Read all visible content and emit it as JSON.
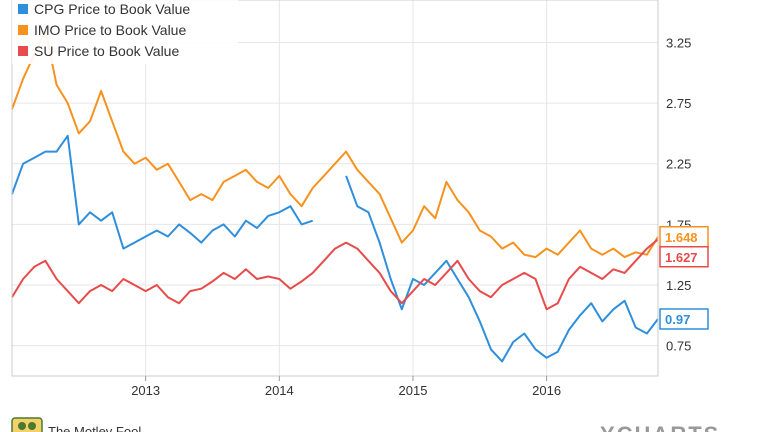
{
  "chart_data": {
    "type": "line",
    "title": "",
    "xlabel": "",
    "ylabel": "",
    "x_ticks": [
      "2013",
      "2014",
      "2015",
      "2016"
    ],
    "y_ticks": [
      "0.75",
      "1.25",
      "1.75",
      "2.25",
      "2.75",
      "3.25"
    ],
    "ylim": [
      0.5,
      3.6
    ],
    "xlim": [
      "2012-01",
      "2016-11"
    ],
    "grid": true,
    "legend_position": "top-left",
    "series": [
      {
        "name": "CPG Price to Book Value",
        "color": "#2f8fdc",
        "end_label": "0.97",
        "segments": [
          [
            [
              "2012-01",
              2.0
            ],
            [
              "2012-02",
              2.25
            ],
            [
              "2012-03",
              2.3
            ],
            [
              "2012-04",
              2.35
            ],
            [
              "2012-05",
              2.35
            ],
            [
              "2012-06",
              2.48
            ],
            [
              "2012-07",
              1.75
            ],
            [
              "2012-08",
              1.85
            ],
            [
              "2012-09",
              1.78
            ],
            [
              "2012-10",
              1.85
            ],
            [
              "2012-11",
              1.55
            ],
            [
              "2012-12",
              1.6
            ],
            [
              "2013-01",
              1.65
            ],
            [
              "2013-02",
              1.7
            ],
            [
              "2013-03",
              1.65
            ],
            [
              "2013-04",
              1.75
            ],
            [
              "2013-05",
              1.68
            ],
            [
              "2013-06",
              1.6
            ],
            [
              "2013-07",
              1.7
            ],
            [
              "2013-08",
              1.75
            ],
            [
              "2013-09",
              1.65
            ],
            [
              "2013-10",
              1.78
            ],
            [
              "2013-11",
              1.72
            ],
            [
              "2013-12",
              1.82
            ],
            [
              "2014-01",
              1.85
            ],
            [
              "2014-02",
              1.9
            ],
            [
              "2014-03",
              1.75
            ],
            [
              "2014-04",
              1.78
            ]
          ],
          [
            [
              "2014-07",
              2.15
            ],
            [
              "2014-08",
              1.9
            ],
            [
              "2014-09",
              1.85
            ],
            [
              "2014-10",
              1.6
            ],
            [
              "2014-11",
              1.3
            ],
            [
              "2014-12",
              1.05
            ],
            [
              "2015-01",
              1.3
            ],
            [
              "2015-02",
              1.25
            ],
            [
              "2015-03",
              1.35
            ],
            [
              "2015-04",
              1.45
            ],
            [
              "2015-05",
              1.3
            ],
            [
              "2015-06",
              1.15
            ],
            [
              "2015-07",
              0.95
            ],
            [
              "2015-08",
              0.72
            ],
            [
              "2015-09",
              0.62
            ],
            [
              "2015-10",
              0.78
            ],
            [
              "2015-11",
              0.85
            ],
            [
              "2015-12",
              0.72
            ],
            [
              "2016-01",
              0.65
            ],
            [
              "2016-02",
              0.7
            ],
            [
              "2016-03",
              0.88
            ],
            [
              "2016-04",
              1.0
            ],
            [
              "2016-05",
              1.1
            ],
            [
              "2016-06",
              0.95
            ],
            [
              "2016-07",
              1.05
            ],
            [
              "2016-08",
              1.12
            ],
            [
              "2016-09",
              0.9
            ],
            [
              "2016-10",
              0.85
            ],
            [
              "2016-11",
              0.97
            ]
          ]
        ]
      },
      {
        "name": "IMO Price to Book Value",
        "color": "#f7921e",
        "end_label": "1.648",
        "segments": [
          [
            [
              "2012-01",
              2.7
            ],
            [
              "2012-02",
              2.95
            ],
            [
              "2012-03",
              3.15
            ],
            [
              "2012-04",
              3.35
            ],
            [
              "2012-05",
              2.9
            ],
            [
              "2012-06",
              2.75
            ],
            [
              "2012-07",
              2.5
            ],
            [
              "2012-08",
              2.6
            ],
            [
              "2012-09",
              2.85
            ],
            [
              "2012-10",
              2.6
            ],
            [
              "2012-11",
              2.35
            ],
            [
              "2012-12",
              2.25
            ],
            [
              "2013-01",
              2.3
            ],
            [
              "2013-02",
              2.2
            ],
            [
              "2013-03",
              2.25
            ],
            [
              "2013-04",
              2.1
            ],
            [
              "2013-05",
              1.95
            ],
            [
              "2013-06",
              2.0
            ],
            [
              "2013-07",
              1.95
            ],
            [
              "2013-08",
              2.1
            ],
            [
              "2013-09",
              2.15
            ],
            [
              "2013-10",
              2.2
            ],
            [
              "2013-11",
              2.1
            ],
            [
              "2013-12",
              2.05
            ],
            [
              "2014-01",
              2.15
            ],
            [
              "2014-02",
              2.0
            ],
            [
              "2014-03",
              1.9
            ],
            [
              "2014-04",
              2.05
            ],
            [
              "2014-05",
              2.15
            ],
            [
              "2014-06",
              2.25
            ],
            [
              "2014-07",
              2.35
            ],
            [
              "2014-08",
              2.2
            ],
            [
              "2014-09",
              2.1
            ],
            [
              "2014-10",
              2.0
            ],
            [
              "2014-11",
              1.8
            ],
            [
              "2014-12",
              1.6
            ],
            [
              "2015-01",
              1.7
            ],
            [
              "2015-02",
              1.9
            ],
            [
              "2015-03",
              1.8
            ],
            [
              "2015-04",
              2.1
            ],
            [
              "2015-05",
              1.95
            ],
            [
              "2015-06",
              1.85
            ],
            [
              "2015-07",
              1.7
            ],
            [
              "2015-08",
              1.65
            ],
            [
              "2015-09",
              1.55
            ],
            [
              "2015-10",
              1.6
            ],
            [
              "2015-11",
              1.5
            ],
            [
              "2015-12",
              1.48
            ],
            [
              "2016-01",
              1.55
            ],
            [
              "2016-02",
              1.5
            ],
            [
              "2016-03",
              1.6
            ],
            [
              "2016-04",
              1.7
            ],
            [
              "2016-05",
              1.55
            ],
            [
              "2016-06",
              1.5
            ],
            [
              "2016-07",
              1.55
            ],
            [
              "2016-08",
              1.48
            ],
            [
              "2016-09",
              1.52
            ],
            [
              "2016-10",
              1.5
            ],
            [
              "2016-11",
              1.648
            ]
          ]
        ]
      },
      {
        "name": "SU Price to Book Value",
        "color": "#e84b4b",
        "end_label": "1.627",
        "segments": [
          [
            [
              "2012-01",
              1.15
            ],
            [
              "2012-02",
              1.3
            ],
            [
              "2012-03",
              1.4
            ],
            [
              "2012-04",
              1.45
            ],
            [
              "2012-05",
              1.3
            ],
            [
              "2012-06",
              1.2
            ],
            [
              "2012-07",
              1.1
            ],
            [
              "2012-08",
              1.2
            ],
            [
              "2012-09",
              1.25
            ],
            [
              "2012-10",
              1.2
            ],
            [
              "2012-11",
              1.3
            ],
            [
              "2012-12",
              1.25
            ],
            [
              "2013-01",
              1.2
            ],
            [
              "2013-02",
              1.25
            ],
            [
              "2013-03",
              1.15
            ],
            [
              "2013-04",
              1.1
            ],
            [
              "2013-05",
              1.2
            ],
            [
              "2013-06",
              1.22
            ],
            [
              "2013-07",
              1.28
            ],
            [
              "2013-08",
              1.35
            ],
            [
              "2013-09",
              1.3
            ],
            [
              "2013-10",
              1.38
            ],
            [
              "2013-11",
              1.3
            ],
            [
              "2013-12",
              1.32
            ],
            [
              "2014-01",
              1.3
            ],
            [
              "2014-02",
              1.22
            ],
            [
              "2014-03",
              1.28
            ],
            [
              "2014-04",
              1.35
            ],
            [
              "2014-05",
              1.45
            ],
            [
              "2014-06",
              1.55
            ],
            [
              "2014-07",
              1.6
            ],
            [
              "2014-08",
              1.55
            ],
            [
              "2014-09",
              1.45
            ],
            [
              "2014-10",
              1.35
            ],
            [
              "2014-11",
              1.2
            ],
            [
              "2014-12",
              1.1
            ],
            [
              "2015-01",
              1.2
            ],
            [
              "2015-02",
              1.3
            ],
            [
              "2015-03",
              1.25
            ],
            [
              "2015-04",
              1.35
            ],
            [
              "2015-05",
              1.45
            ],
            [
              "2015-06",
              1.3
            ],
            [
              "2015-07",
              1.2
            ],
            [
              "2015-08",
              1.15
            ],
            [
              "2015-09",
              1.25
            ],
            [
              "2015-10",
              1.3
            ],
            [
              "2015-11",
              1.35
            ],
            [
              "2015-12",
              1.3
            ],
            [
              "2016-01",
              1.05
            ],
            [
              "2016-02",
              1.1
            ],
            [
              "2016-03",
              1.3
            ],
            [
              "2016-04",
              1.4
            ],
            [
              "2016-05",
              1.35
            ],
            [
              "2016-06",
              1.3
            ],
            [
              "2016-07",
              1.38
            ],
            [
              "2016-08",
              1.35
            ],
            [
              "2016-09",
              1.45
            ],
            [
              "2016-10",
              1.55
            ],
            [
              "2016-11",
              1.627
            ]
          ]
        ]
      }
    ]
  },
  "footer": {
    "source_text": "The Motley Fool",
    "brand_text": "YCHARTS"
  }
}
